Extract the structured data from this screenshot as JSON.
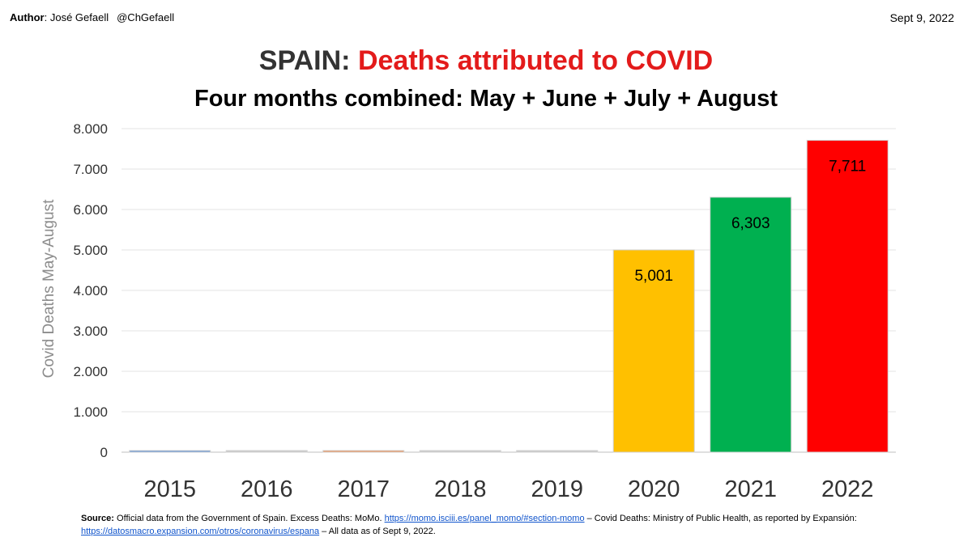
{
  "header": {
    "author_label": "Author",
    "author_name": ": José Gefaell",
    "author_handle": "@ChGefaell",
    "date": "Sept 9, 2022"
  },
  "title_prefix": "SPAIN:",
  "title_main": "Deaths attributed to COVID",
  "subtitle": "Four months combined: May + June + July + August",
  "chart_data": {
    "type": "bar",
    "ylabel": "Covid Deaths May-August",
    "categories": [
      "2015",
      "2016",
      "2017",
      "2018",
      "2019",
      "2020",
      "2021",
      "2022"
    ],
    "values": [
      0,
      0,
      0,
      0,
      0,
      5001,
      6303,
      7711
    ],
    "data_labels": [
      "",
      "",
      "",
      "",
      "",
      "5,001",
      "6,303",
      "7,711"
    ],
    "colors": [
      "#5b8fd4",
      "#c9c9c9",
      "#ed8c4f",
      "#c9c9c9",
      "#c9c9c9",
      "#ffc000",
      "#00b050",
      "#ff0000"
    ],
    "ylim": [
      0,
      8000
    ],
    "yticks": [
      0,
      1000,
      2000,
      3000,
      4000,
      5000,
      6000,
      7000,
      8000
    ],
    "ytick_labels": [
      "0",
      "1.000",
      "2.000",
      "3.000",
      "4.000",
      "5.000",
      "6.000",
      "7.000",
      "8.000"
    ],
    "grid": true
  },
  "source": {
    "label": "Source:",
    "text1": " Official data from the Government of Spain. Excess Deaths: MoMo. ",
    "link1": "https://momo.isciii.es/panel_momo/#section-momo",
    "text2": "  – Covid Deaths: Ministry of Public Health, as reported by Expansión: ",
    "link2": "https://datosmacro.expansion.com/otros/coronavirus/espana",
    "text3": "  – All data as of Sept 9, 2022."
  }
}
